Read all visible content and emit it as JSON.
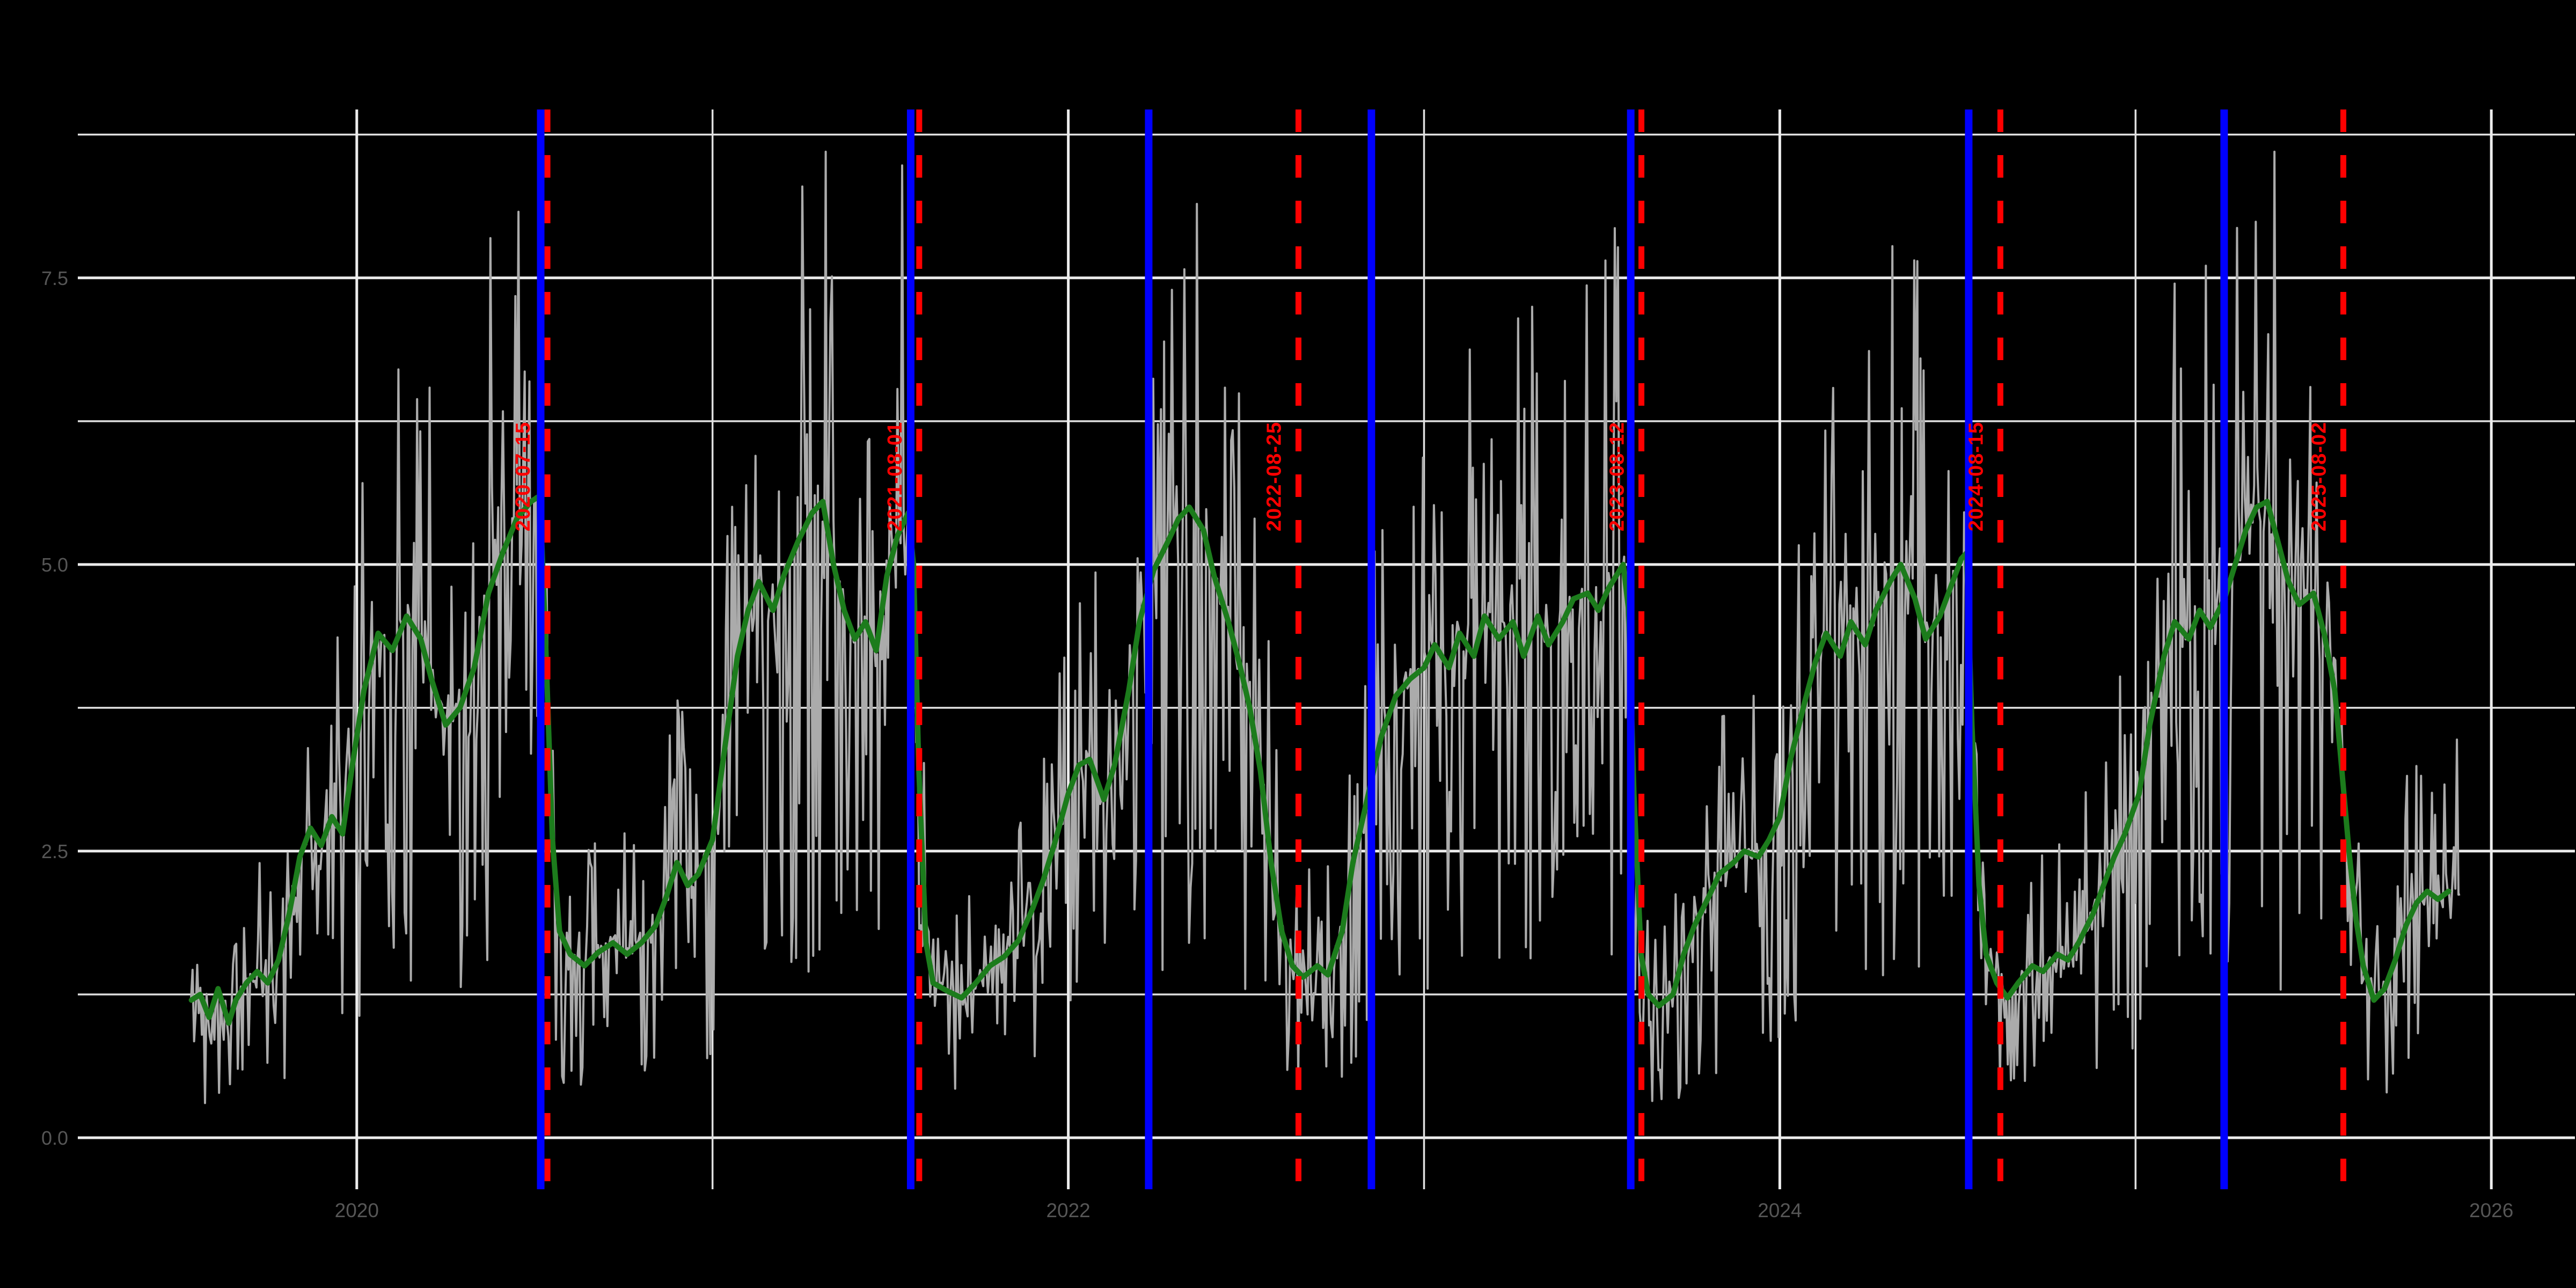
{
  "figure": {
    "background_color": "#000000",
    "grid_major_color": "#ececec",
    "grid_minor_color": "#e0e0e0",
    "tick_label_color": "#565656",
    "raw_series_color": "#ababab",
    "trend_series_color": "#1c7c1c",
    "blue_event_color": "#0000ff",
    "red_event_color": "#ff0000"
  },
  "chart_data": {
    "type": "line",
    "title": "",
    "xlabel": "",
    "ylabel": "",
    "legend": "none",
    "grid": "on",
    "x_axis": {
      "tick_labels_major": [
        "2020",
        "2022",
        "2024",
        "2026"
      ],
      "ticks_major": [
        2020,
        2022,
        2024,
        2026
      ],
      "ticks_minor": [
        2021,
        2023,
        2025
      ],
      "range": [
        2019.22,
        2026.23
      ]
    },
    "y_axis": {
      "tick_labels_major": [
        "0.0",
        "2.5",
        "5.0",
        "7.5"
      ],
      "ticks_major": [
        0.0,
        2.5,
        5.0,
        7.5
      ],
      "ticks_minor": [
        1.25,
        3.75,
        6.25,
        8.75
      ],
      "range": [
        -0.45,
        9.0
      ]
    },
    "series": [
      {
        "name": "daily-raw",
        "style": "thin jagged daily line",
        "color_key": "raw_series_color",
        "observed_value_range": [
          0.3,
          8.6
        ],
        "t_start": 2019.534,
        "t_end": 2025.915,
        "noise_model": {
          "seed": 42,
          "step_days": 1.6,
          "s_up": 0.52,
          "s_down": 1.35,
          "jitter_abs": 0.1,
          "clamp": [
            0.3,
            8.6
          ]
        }
      },
      {
        "name": "smoothed-trend",
        "style": "thick smoothed line",
        "color_key": "trend_series_color",
        "points": [
          [
            2019.535,
            1.2
          ],
          [
            2019.56,
            1.25
          ],
          [
            2019.585,
            1.05
          ],
          [
            2019.61,
            1.3
          ],
          [
            2019.64,
            1.0
          ],
          [
            2019.66,
            1.2
          ],
          [
            2019.69,
            1.35
          ],
          [
            2019.72,
            1.45
          ],
          [
            2019.75,
            1.35
          ],
          [
            2019.78,
            1.55
          ],
          [
            2019.81,
            1.95
          ],
          [
            2019.84,
            2.45
          ],
          [
            2019.87,
            2.7
          ],
          [
            2019.9,
            2.55
          ],
          [
            2019.93,
            2.8
          ],
          [
            2019.96,
            2.65
          ],
          [
            2019.99,
            3.3
          ],
          [
            2020.02,
            3.9
          ],
          [
            2020.06,
            4.4
          ],
          [
            2020.1,
            4.25
          ],
          [
            2020.14,
            4.55
          ],
          [
            2020.18,
            4.35
          ],
          [
            2020.21,
            4.0
          ],
          [
            2020.25,
            3.6
          ],
          [
            2020.29,
            3.75
          ],
          [
            2020.33,
            4.1
          ],
          [
            2020.37,
            4.75
          ],
          [
            2020.41,
            5.1
          ],
          [
            2020.45,
            5.4
          ],
          [
            2020.49,
            5.55
          ],
          [
            2020.515,
            5.6
          ],
          [
            2020.53,
            4.4
          ],
          [
            2020.55,
            2.6
          ],
          [
            2020.57,
            1.8
          ],
          [
            2020.6,
            1.6
          ],
          [
            2020.64,
            1.5
          ],
          [
            2020.68,
            1.62
          ],
          [
            2020.72,
            1.7
          ],
          [
            2020.76,
            1.6
          ],
          [
            2020.8,
            1.7
          ],
          [
            2020.84,
            1.85
          ],
          [
            2020.87,
            2.1
          ],
          [
            2020.9,
            2.4
          ],
          [
            2020.93,
            2.2
          ],
          [
            2020.96,
            2.3
          ],
          [
            2021.0,
            2.6
          ],
          [
            2021.03,
            3.3
          ],
          [
            2021.07,
            4.2
          ],
          [
            2021.1,
            4.6
          ],
          [
            2021.13,
            4.85
          ],
          [
            2021.17,
            4.6
          ],
          [
            2021.2,
            4.9
          ],
          [
            2021.24,
            5.2
          ],
          [
            2021.28,
            5.45
          ],
          [
            2021.31,
            5.55
          ],
          [
            2021.34,
            5.0
          ],
          [
            2021.37,
            4.6
          ],
          [
            2021.4,
            4.35
          ],
          [
            2021.43,
            4.5
          ],
          [
            2021.46,
            4.25
          ],
          [
            2021.49,
            4.9
          ],
          [
            2021.52,
            5.25
          ],
          [
            2021.55,
            5.45
          ],
          [
            2021.565,
            5.0
          ],
          [
            2021.58,
            3.2
          ],
          [
            2021.6,
            1.7
          ],
          [
            2021.62,
            1.35
          ],
          [
            2021.66,
            1.28
          ],
          [
            2021.7,
            1.22
          ],
          [
            2021.74,
            1.35
          ],
          [
            2021.78,
            1.5
          ],
          [
            2021.82,
            1.58
          ],
          [
            2021.86,
            1.72
          ],
          [
            2021.9,
            2.0
          ],
          [
            2021.93,
            2.25
          ],
          [
            2021.96,
            2.55
          ],
          [
            2022.0,
            3.0
          ],
          [
            2022.03,
            3.25
          ],
          [
            2022.06,
            3.3
          ],
          [
            2022.1,
            2.95
          ],
          [
            2022.13,
            3.25
          ],
          [
            2022.17,
            3.9
          ],
          [
            2022.2,
            4.5
          ],
          [
            2022.24,
            4.95
          ],
          [
            2022.28,
            5.2
          ],
          [
            2022.31,
            5.4
          ],
          [
            2022.34,
            5.5
          ],
          [
            2022.38,
            5.3
          ],
          [
            2022.41,
            4.9
          ],
          [
            2022.45,
            4.5
          ],
          [
            2022.48,
            4.15
          ],
          [
            2022.51,
            3.75
          ],
          [
            2022.54,
            3.2
          ],
          [
            2022.57,
            2.4
          ],
          [
            2022.6,
            1.8
          ],
          [
            2022.63,
            1.5
          ],
          [
            2022.66,
            1.4
          ],
          [
            2022.7,
            1.5
          ],
          [
            2022.73,
            1.42
          ],
          [
            2022.77,
            1.8
          ],
          [
            2022.8,
            2.4
          ],
          [
            2022.84,
            2.95
          ],
          [
            2022.88,
            3.5
          ],
          [
            2022.92,
            3.85
          ],
          [
            2022.96,
            4.0
          ],
          [
            2023.0,
            4.1
          ],
          [
            2023.03,
            4.3
          ],
          [
            2023.07,
            4.1
          ],
          [
            2023.1,
            4.4
          ],
          [
            2023.14,
            4.2
          ],
          [
            2023.17,
            4.55
          ],
          [
            2023.21,
            4.35
          ],
          [
            2023.25,
            4.5
          ],
          [
            2023.28,
            4.2
          ],
          [
            2023.32,
            4.55
          ],
          [
            2023.35,
            4.3
          ],
          [
            2023.39,
            4.5
          ],
          [
            2023.42,
            4.7
          ],
          [
            2023.46,
            4.75
          ],
          [
            2023.49,
            4.6
          ],
          [
            2023.52,
            4.8
          ],
          [
            2023.56,
            5.0
          ],
          [
            2023.575,
            4.6
          ],
          [
            2023.59,
            3.0
          ],
          [
            2023.61,
            1.6
          ],
          [
            2023.63,
            1.25
          ],
          [
            2023.66,
            1.15
          ],
          [
            2023.7,
            1.25
          ],
          [
            2023.73,
            1.6
          ],
          [
            2023.76,
            1.85
          ],
          [
            2023.8,
            2.1
          ],
          [
            2023.83,
            2.3
          ],
          [
            2023.87,
            2.4
          ],
          [
            2023.9,
            2.5
          ],
          [
            2023.94,
            2.45
          ],
          [
            2023.97,
            2.6
          ],
          [
            2024.0,
            2.8
          ],
          [
            2024.03,
            3.3
          ],
          [
            2024.07,
            3.8
          ],
          [
            2024.1,
            4.15
          ],
          [
            2024.13,
            4.4
          ],
          [
            2024.17,
            4.2
          ],
          [
            2024.2,
            4.5
          ],
          [
            2024.24,
            4.3
          ],
          [
            2024.27,
            4.6
          ],
          [
            2024.31,
            4.85
          ],
          [
            2024.34,
            5.0
          ],
          [
            2024.38,
            4.7
          ],
          [
            2024.41,
            4.35
          ],
          [
            2024.45,
            4.55
          ],
          [
            2024.48,
            4.8
          ],
          [
            2024.51,
            5.05
          ],
          [
            2024.525,
            5.1
          ],
          [
            2024.54,
            3.6
          ],
          [
            2024.56,
            2.2
          ],
          [
            2024.58,
            1.6
          ],
          [
            2024.61,
            1.35
          ],
          [
            2024.64,
            1.22
          ],
          [
            2024.67,
            1.35
          ],
          [
            2024.71,
            1.5
          ],
          [
            2024.74,
            1.45
          ],
          [
            2024.78,
            1.6
          ],
          [
            2024.81,
            1.55
          ],
          [
            2024.84,
            1.7
          ],
          [
            2024.88,
            1.95
          ],
          [
            2024.91,
            2.2
          ],
          [
            2024.94,
            2.45
          ],
          [
            2024.97,
            2.65
          ],
          [
            2025.01,
            3.0
          ],
          [
            2025.04,
            3.6
          ],
          [
            2025.08,
            4.2
          ],
          [
            2025.11,
            4.5
          ],
          [
            2025.15,
            4.35
          ],
          [
            2025.18,
            4.6
          ],
          [
            2025.21,
            4.45
          ],
          [
            2025.25,
            4.7
          ],
          [
            2025.28,
            5.0
          ],
          [
            2025.31,
            5.3
          ],
          [
            2025.34,
            5.5
          ],
          [
            2025.37,
            5.55
          ],
          [
            2025.4,
            5.2
          ],
          [
            2025.43,
            4.85
          ],
          [
            2025.46,
            4.65
          ],
          [
            2025.5,
            4.75
          ],
          [
            2025.53,
            4.4
          ],
          [
            2025.56,
            3.9
          ],
          [
            2025.58,
            3.2
          ],
          [
            2025.6,
            2.5
          ],
          [
            2025.62,
            1.9
          ],
          [
            2025.64,
            1.5
          ],
          [
            2025.67,
            1.2
          ],
          [
            2025.7,
            1.3
          ],
          [
            2025.73,
            1.55
          ],
          [
            2025.76,
            1.85
          ],
          [
            2025.79,
            2.05
          ],
          [
            2025.82,
            2.15
          ],
          [
            2025.85,
            2.08
          ],
          [
            2025.88,
            2.15
          ]
        ]
      }
    ],
    "event_lines_blue": [
      {
        "t": 2020.517,
        "date_est": "2020-07-08"
      },
      {
        "t": 2021.557,
        "date_est": "2021-07-22"
      },
      {
        "t": 2022.226,
        "date_est": "2022-03-24"
      },
      {
        "t": 2022.852,
        "date_est": "2022-11-07"
      },
      {
        "t": 2023.581,
        "date_est": "2023-07-31"
      },
      {
        "t": 2024.531,
        "date_est": "2024-07-12"
      },
      {
        "t": 2025.249,
        "date_est": "2025-04-01"
      }
    ],
    "event_lines_red": [
      {
        "t": 2020.536,
        "label": "2020-07-15"
      },
      {
        "t": 2021.581,
        "label": "2021-08-01"
      },
      {
        "t": 2022.647,
        "label": "2022-08-25"
      },
      {
        "t": 2023.611,
        "label": "2023-08-12"
      },
      {
        "t": 2024.62,
        "label": "2024-08-15"
      },
      {
        "t": 2025.584,
        "label": "2025-08-02"
      }
    ]
  }
}
